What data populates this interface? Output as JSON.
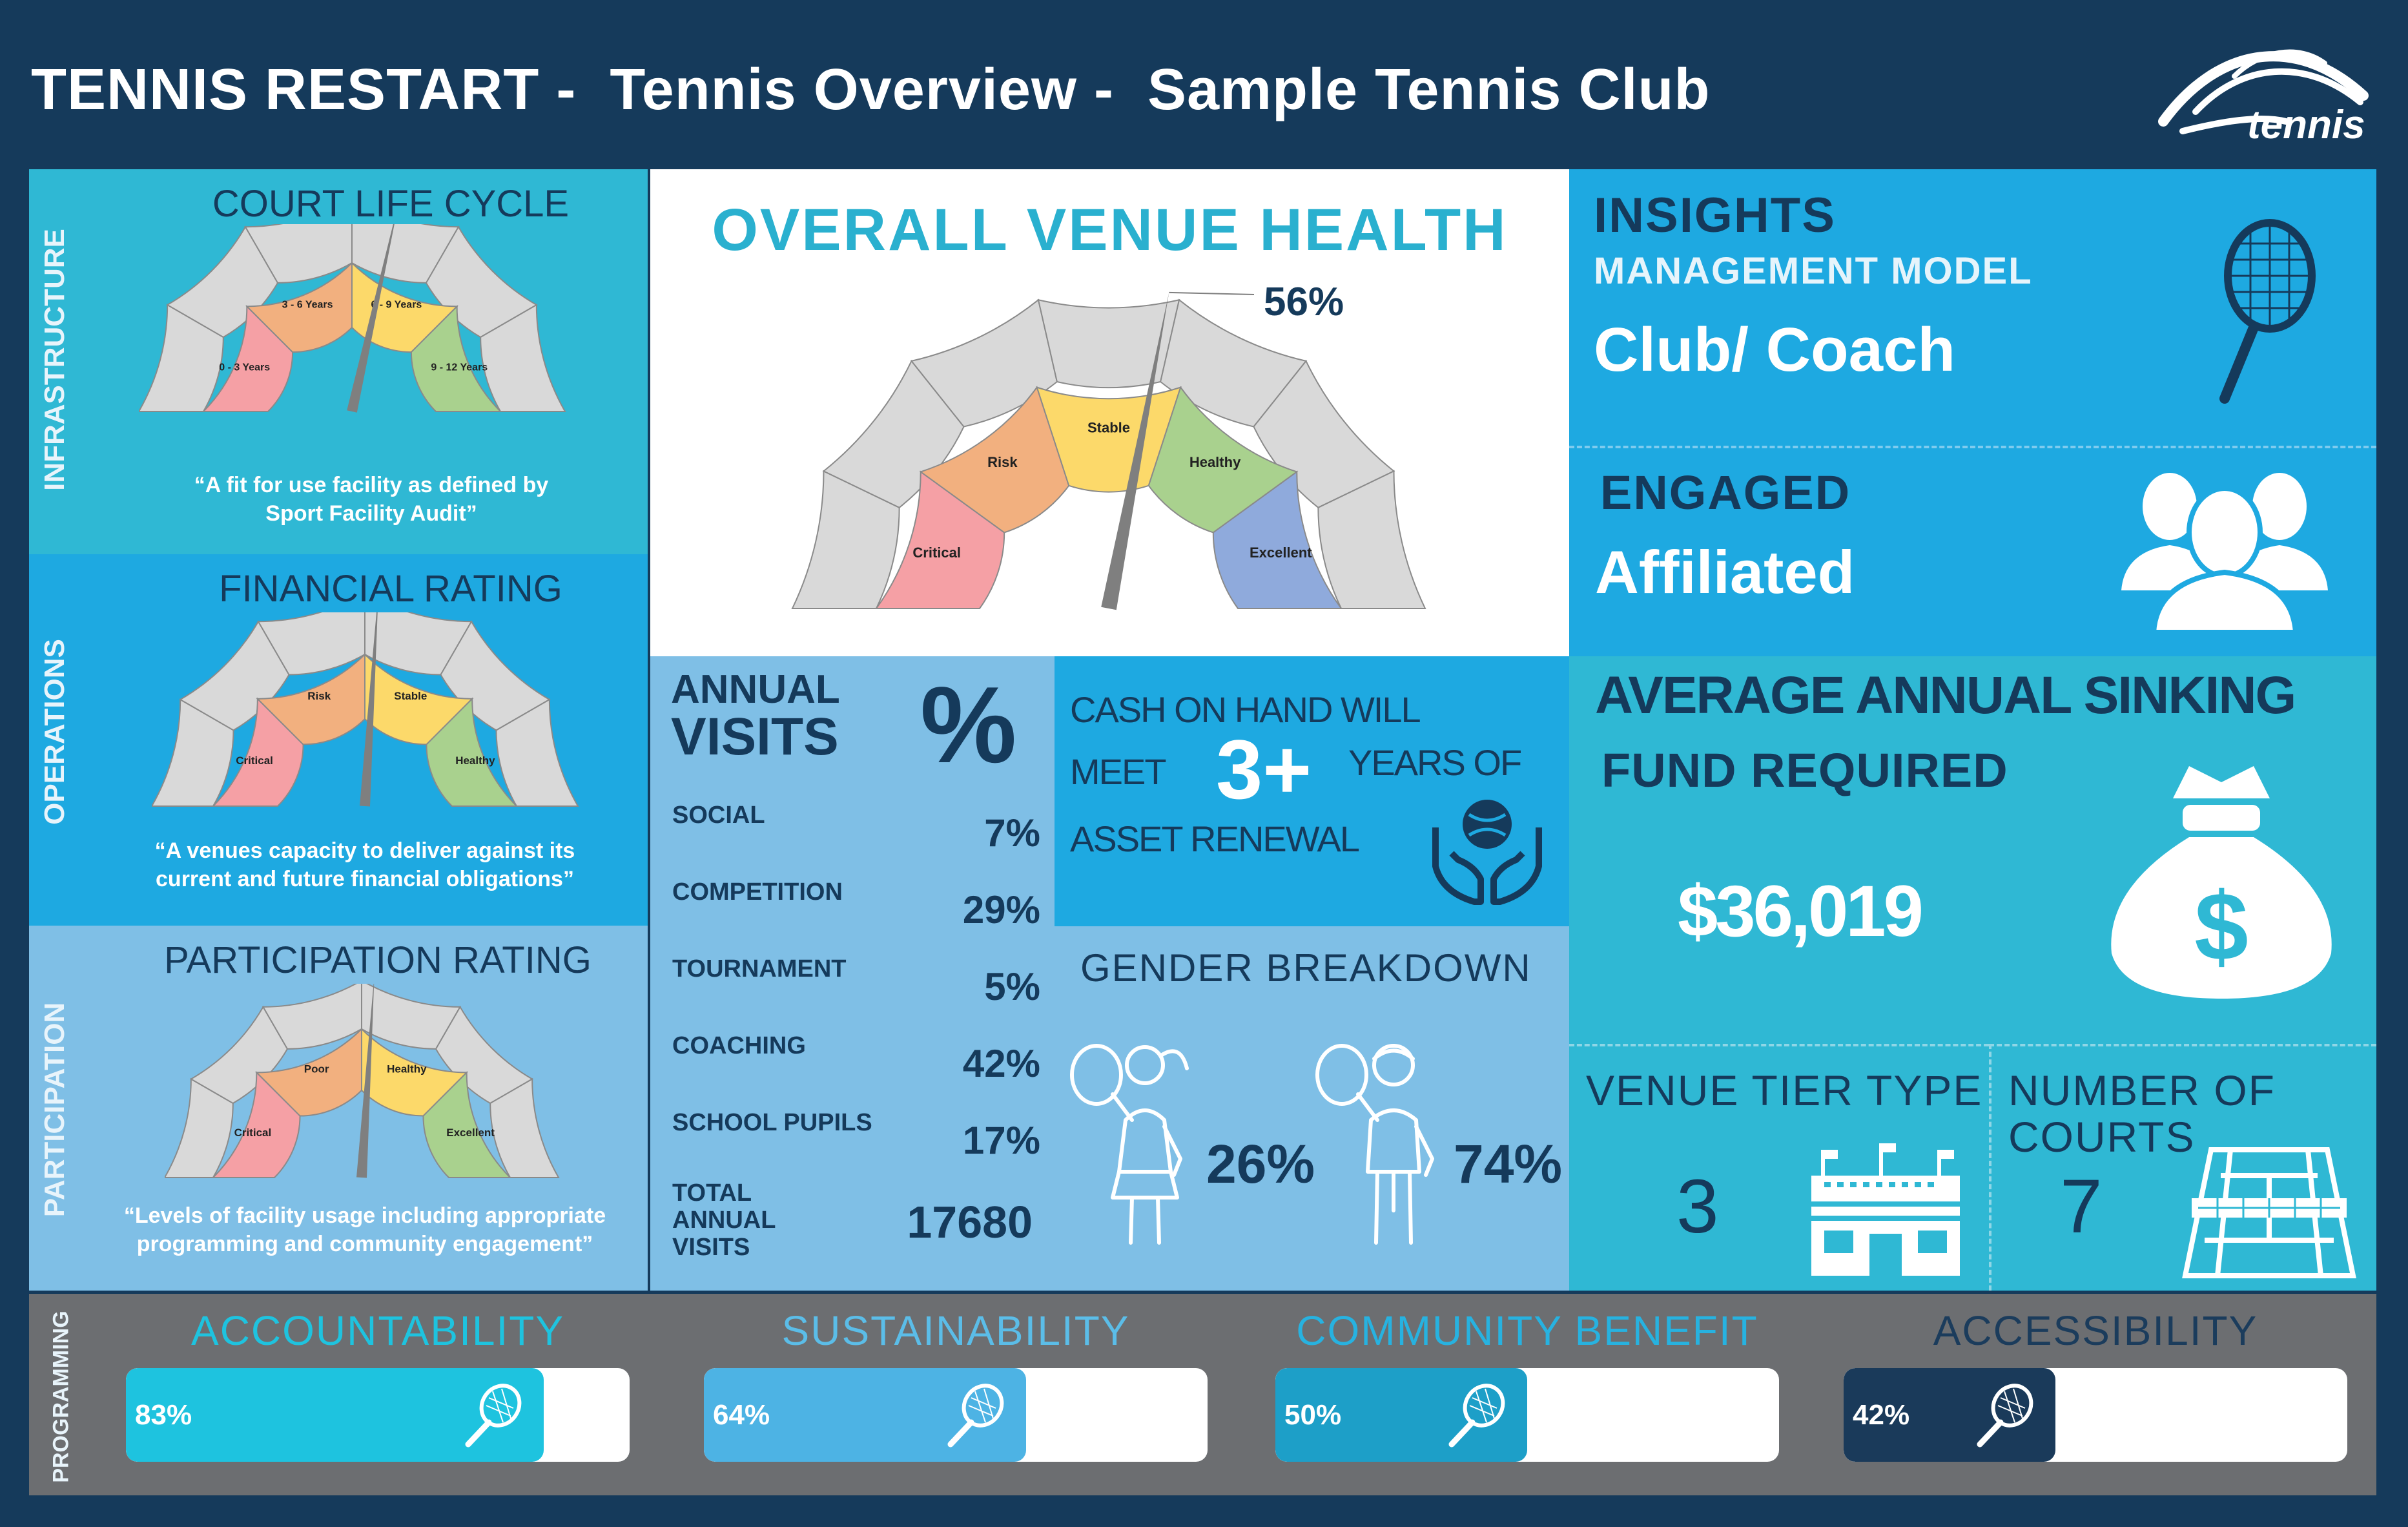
{
  "header": {
    "title_part1": "TENNIS RESTART -",
    "title_part2": "Tennis Overview -",
    "title_part3": "Sample Tennis Club",
    "logo_text": "tennis"
  },
  "sections": {
    "infrastructure": "INFRASTRUCTURE",
    "operations": "OPERATIONS",
    "participation": "PARTICIPATION",
    "programming": "PROGRAMMING"
  },
  "court_life_cycle": {
    "title": "COURT LIFE CYCLE",
    "segments": [
      "0 - 3 Years",
      "3 - 6 Years",
      "6 - 9 Years",
      "9 - 12 Years"
    ],
    "caption_line1": "“A fit for use facility as defined by",
    "caption_line2": "Sport Facility Audit”"
  },
  "financial_rating": {
    "title": "FINANCIAL RATING",
    "segments": [
      "Critical",
      "Risk",
      "Stable",
      "Healthy"
    ],
    "caption_line1": "“A venues capacity to deliver against its",
    "caption_line2": "current and future financial obligations”"
  },
  "participation_rating": {
    "title": "PARTICIPATION RATING",
    "segments": [
      "Critical",
      "Poor",
      "Healthy",
      "Excellent"
    ],
    "caption_line1": "“Levels of facility usage including appropriate",
    "caption_line2": "programming and  community engagement”"
  },
  "venue_health": {
    "title": "OVERALL VENUE HEALTH",
    "value_label": "56%",
    "value": 56,
    "segments": [
      "Critical",
      "Risk",
      "Stable",
      "Healthy",
      "Excellent"
    ]
  },
  "annual_visits": {
    "title_line1": "ANNUAL",
    "title_line2": "VISITS",
    "percent_symbol": "%",
    "rows": [
      {
        "label": "SOCIAL",
        "value": "7%"
      },
      {
        "label": "COMPETITION",
        "value": "29%"
      },
      {
        "label": "TOURNAMENT",
        "value": "5%"
      },
      {
        "label": "COACHING",
        "value": "42%"
      },
      {
        "label": "SCHOOL PUPILS",
        "value": "17%"
      }
    ],
    "total_line1": "TOTAL",
    "total_line2": "ANNUAL",
    "total_line3": "VISITS",
    "total_value": "17680"
  },
  "cash": {
    "line1": "CASH ON HAND WILL",
    "line2a": "MEET",
    "big": "3+",
    "line2b": "YEARS OF",
    "line3": "ASSET RENEWAL"
  },
  "gender": {
    "title": "GENDER BREAKDOWN",
    "female": "26%",
    "male": "74%"
  },
  "insights": {
    "title": "INSIGHTS",
    "subtitle": "MANAGEMENT MODEL",
    "value": "Club/ Coach"
  },
  "engaged": {
    "title": "ENGAGED",
    "value": "Affiliated"
  },
  "sinking_fund": {
    "title_line1": "AVERAGE ANNUAL SINKING",
    "title_line2": "FUND REQUIRED",
    "value": "$36,019"
  },
  "venue_tier": {
    "title": "VENUE TIER TYPE",
    "value": "3"
  },
  "courts": {
    "title_line1": "NUMBER OF",
    "title_line2": "COURTS",
    "value": "7"
  },
  "programming": [
    {
      "label": "ACCOUNTABILITY",
      "percent_label": "83%",
      "percent": 83,
      "color": "#1ec3df",
      "label_color": "#1ec3df"
    },
    {
      "label": "SUSTAINABILITY",
      "percent_label": "64%",
      "percent": 64,
      "color": "#4db3e4",
      "label_color": "#5bbde8"
    },
    {
      "label": "COMMUNITY BENEFIT",
      "percent_label": "50%",
      "percent": 50,
      "color": "#1d9fc8",
      "label_color": "#27b2e0"
    },
    {
      "label": "ACCESSIBILITY",
      "percent_label": "42%",
      "percent": 42,
      "color": "#1a3a5a",
      "label_color": "#1b3c5c"
    }
  ],
  "colors": {
    "header_bg": "#153a5b",
    "infra_bg": "#2fb8d4",
    "ops_bg": "#1ea9e1",
    "part_bg": "#7fbfe6",
    "programming_bg": "#6c6e71",
    "seg_red": "#f5a0a5",
    "seg_orange": "#f2b07f",
    "seg_yellow": "#fcd96a",
    "seg_green": "#a9d18e",
    "seg_blue": "#8faadc",
    "seg_grey": "#d9d9d9"
  }
}
